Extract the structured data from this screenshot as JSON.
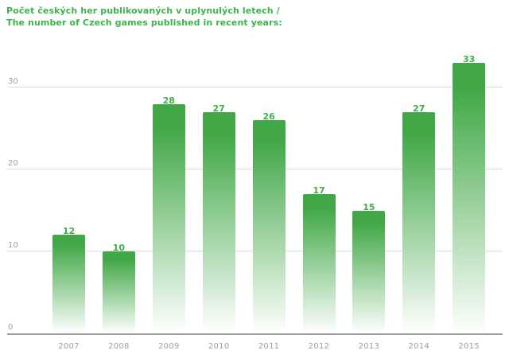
{
  "title": {
    "line1": "Počet českých her publikovaných v uplynulých letech /",
    "line2": "The number of Czech games published in recent years:"
  },
  "chart_data": {
    "type": "bar",
    "categories": [
      "2007",
      "2008",
      "2009",
      "2010",
      "2011",
      "2012",
      "2013",
      "2014",
      "2015"
    ],
    "values": [
      12,
      10,
      28,
      27,
      26,
      17,
      15,
      27,
      33
    ],
    "title": "Počet českých her publikovaných v uplynulých letech / The number of Czech games published in recent years:",
    "xlabel": "",
    "ylabel": "",
    "yticks": [
      0,
      10,
      20,
      30
    ],
    "ylim": [
      0,
      40
    ],
    "grid": true,
    "legend": false,
    "value_labels_shown": true,
    "colors": {
      "title": "#3cb44a",
      "bar_top": "#42a847",
      "bar_bottom": "#ffffff",
      "value_label": "#3fae4a",
      "tick_label": "#9d9d9d",
      "gridline": "#dcdcdc",
      "axis_line": "#a0a0a0"
    }
  }
}
